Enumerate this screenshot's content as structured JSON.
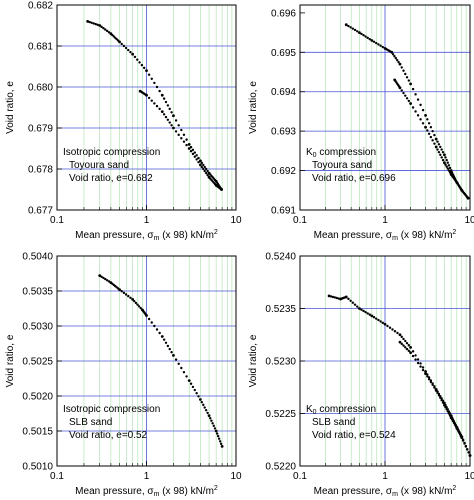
{
  "chart_data": [
    {
      "type": "scatter",
      "xscale": "log",
      "xlim": [
        0.1,
        10
      ],
      "ylim": [
        0.677,
        0.682
      ],
      "xticks": [
        0.1,
        1,
        10
      ],
      "xtick_labels": [
        "0.1",
        "1",
        "10"
      ],
      "yticks": [
        0.677,
        0.678,
        0.679,
        0.68,
        0.681,
        0.682
      ],
      "ytick_labels": [
        "0.677",
        "0.678",
        "0.679",
        "0.680",
        "0.681",
        "0.682"
      ],
      "xlabel": "Mean pressure, σm (x 98) kN/m2",
      "ylabel": "Void ratio, e",
      "grid": true,
      "annotation": [
        "Isotropic compression",
        "Toyoura sand",
        "Void ratio, e=0.682"
      ],
      "series": [
        {
          "x": [
            0.22,
            0.3,
            0.4,
            0.5,
            0.7,
            1.0,
            1.5,
            2.0,
            3.0,
            4.0,
            5.0,
            6.0,
            6.9
          ],
          "y": [
            0.6816,
            0.6815,
            0.6813,
            0.6811,
            0.6808,
            0.6804,
            0.6798,
            0.6793,
            0.6786,
            0.6782,
            0.6779,
            0.6777,
            0.6775
          ]
        },
        {
          "x": [
            0.85,
            1.0,
            1.5,
            2.0,
            3.0,
            4.0,
            5.0,
            6.0,
            6.9
          ],
          "y": [
            0.6799,
            0.6798,
            0.6794,
            0.679,
            0.6785,
            0.6781,
            0.6778,
            0.6776,
            0.6775
          ]
        }
      ]
    },
    {
      "type": "scatter",
      "xscale": "log",
      "xlim": [
        0.1,
        10
      ],
      "ylim": [
        0.691,
        0.6962
      ],
      "xticks": [
        0.1,
        1,
        10
      ],
      "xtick_labels": [
        "0.1",
        "1",
        "10"
      ],
      "yticks": [
        0.691,
        0.692,
        0.693,
        0.694,
        0.695,
        0.696
      ],
      "ytick_labels": [
        "0.691",
        "0.692",
        "0.693",
        "0.694",
        "0.695",
        "0.696"
      ],
      "xlabel": "Mean pressure, σm (x 98) kN/m2",
      "ylabel": "Void ratio, e",
      "grid": true,
      "annotation": [
        "K0 compression",
        "Toyoura sand",
        "Void ratio, e=0.696"
      ],
      "series": [
        {
          "x": [
            0.35,
            0.5,
            0.7,
            1.0,
            1.2,
            1.5,
            2.0,
            3.0,
            4.0,
            5.0,
            6.0,
            7.0,
            8.0,
            9.5
          ],
          "y": [
            0.6957,
            0.6955,
            0.6953,
            0.6951,
            0.695,
            0.6947,
            0.6942,
            0.6934,
            0.6928,
            0.6924,
            0.692,
            0.6917,
            0.6915,
            0.6913
          ]
        },
        {
          "x": [
            1.3,
            1.5,
            2.0,
            3.0,
            4.0,
            5.0,
            6.0,
            7.0,
            8.0,
            9.5
          ],
          "y": [
            0.6943,
            0.6941,
            0.6937,
            0.6931,
            0.6926,
            0.6922,
            0.6919,
            0.6917,
            0.6915,
            0.6913
          ]
        }
      ]
    },
    {
      "type": "scatter",
      "xscale": "log",
      "xlim": [
        0.1,
        10
      ],
      "ylim": [
        0.501,
        0.504
      ],
      "xticks": [
        0.1,
        1,
        10
      ],
      "xtick_labels": [
        "0.1",
        "1",
        "10"
      ],
      "yticks": [
        0.501,
        0.5015,
        0.502,
        0.5025,
        0.503,
        0.5035,
        0.504
      ],
      "ytick_labels": [
        "0.5010",
        "0.5015",
        "0.5020",
        "0.5025",
        "0.5030",
        "0.5035",
        "0.5040"
      ],
      "xlabel": "Mean pressure, σm (x 98) kN/m2",
      "ylabel": "Void ratio, e",
      "grid": true,
      "annotation": [
        "Isotropic compression",
        "SLB sand",
        "Void ratio, e=0.52"
      ],
      "series": [
        {
          "x": [
            0.3,
            0.4,
            0.5,
            0.7,
            0.9,
            1.0,
            1.5,
            2.0,
            3.0,
            4.0,
            5.0,
            6.0,
            7.0
          ],
          "y": [
            0.50372,
            0.50362,
            0.50352,
            0.50338,
            0.50323,
            0.50315,
            0.50285,
            0.50258,
            0.50222,
            0.50195,
            0.50172,
            0.5015,
            0.50128
          ]
        }
      ]
    },
    {
      "type": "scatter",
      "xscale": "log",
      "xlim": [
        0.1,
        10
      ],
      "ylim": [
        0.522,
        0.524
      ],
      "xticks": [
        0.1,
        1,
        10
      ],
      "xtick_labels": [
        "0.1",
        "1",
        "10"
      ],
      "yticks": [
        0.522,
        0.5225,
        0.523,
        0.5235,
        0.524
      ],
      "ytick_labels": [
        "0.5220",
        "0.5225",
        "0.5230",
        "0.5235",
        "0.5240"
      ],
      "xlabel": "Mean pressure, σm (x 98) kN/m2",
      "ylabel": "Void ratio, e",
      "grid": true,
      "annotation": [
        "K0 compression",
        "SLB sand",
        "Void ratio, e=0.524"
      ],
      "series": [
        {
          "x": [
            0.22,
            0.3,
            0.35,
            0.5,
            0.7,
            1.0,
            1.5,
            2.0,
            3.0,
            4.0,
            5.0,
            6.0,
            7.0,
            8.0,
            10.0
          ],
          "y": [
            0.52362,
            0.52359,
            0.52361,
            0.5235,
            0.52343,
            0.52335,
            0.52325,
            0.52313,
            0.5229,
            0.52273,
            0.5226,
            0.52248,
            0.52237,
            0.52228,
            0.5221
          ]
        },
        {
          "x": [
            1.5,
            2.0,
            3.0,
            4.0,
            5.0,
            6.0,
            7.0,
            8.0,
            10.0
          ],
          "y": [
            0.52318,
            0.52308,
            0.52288,
            0.52272,
            0.52258,
            0.52246,
            0.52236,
            0.52227,
            0.5221
          ]
        }
      ]
    }
  ]
}
